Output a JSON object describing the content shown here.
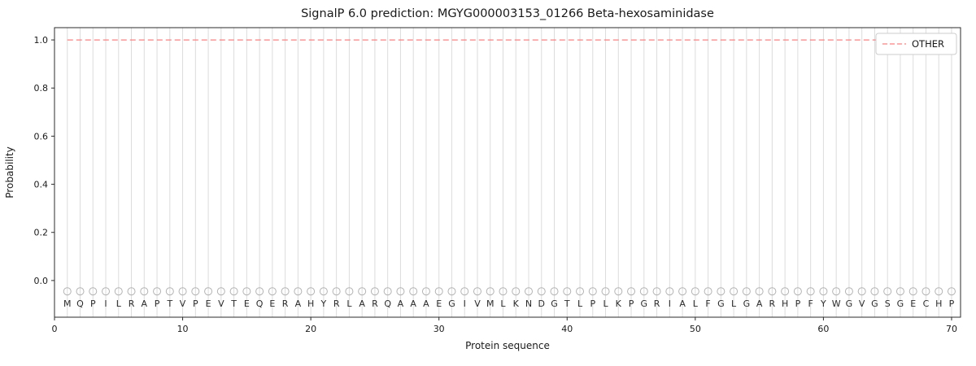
{
  "figure": {
    "background": "#ffffff"
  },
  "chart_data": {
    "type": "line",
    "title": "SignalP 6.0 prediction: MGYG000003153_01266 Beta-hexosaminidase",
    "xlabel": "Protein sequence",
    "ylabel": "Probability",
    "xlim": [
      0,
      70.7
    ],
    "ylim": [
      -0.1525,
      1.051
    ],
    "xtick_values": [
      0,
      10,
      20,
      30,
      40,
      50,
      60,
      70
    ],
    "xtick_labels": [
      "0",
      "10",
      "20",
      "30",
      "40",
      "50",
      "60",
      "70"
    ],
    "ytick_values": [
      0.0,
      0.2,
      0.4,
      0.6,
      0.8,
      1.0
    ],
    "ytick_labels": [
      "0.0",
      "0.2",
      "0.4",
      "0.6",
      "0.8",
      "1.0"
    ],
    "grid": "vertical-line-per-residue",
    "grid_color": "#dcdcdc",
    "sequence": "MQPILRAPTVPEVTEQERAHYRLARQAAAEGIVMLKNDGTLPLKPGRIALFGLGARHPFYWGVGSGECHP",
    "x_start": 1,
    "series": [
      {
        "name": "OTHER",
        "color": "#fa8080",
        "line_style": "dashed",
        "values": [
          1.0,
          1.0,
          1.0,
          1.0,
          1.0,
          1.0,
          1.0,
          1.0,
          1.0,
          1.0,
          1.0,
          1.0,
          1.0,
          1.0,
          1.0,
          1.0,
          1.0,
          1.0,
          1.0,
          1.0,
          1.0,
          1.0,
          1.0,
          1.0,
          1.0,
          1.0,
          1.0,
          1.0,
          1.0,
          1.0,
          1.0,
          1.0,
          1.0,
          1.0,
          1.0,
          1.0,
          1.0,
          1.0,
          1.0,
          1.0,
          1.0,
          1.0,
          1.0,
          1.0,
          1.0,
          1.0,
          1.0,
          1.0,
          1.0,
          1.0,
          1.0,
          1.0,
          1.0,
          1.0,
          1.0,
          1.0,
          1.0,
          1.0,
          1.0,
          1.0,
          1.0,
          1.0,
          1.0,
          1.0,
          1.0,
          1.0,
          1.0,
          1.0,
          1.0,
          1.0
        ]
      }
    ],
    "marker_y": -0.045,
    "marker_color": "#b3b3b3",
    "letter_y": -0.108,
    "legend": {
      "position": "upper right",
      "entries": [
        "OTHER"
      ]
    }
  }
}
